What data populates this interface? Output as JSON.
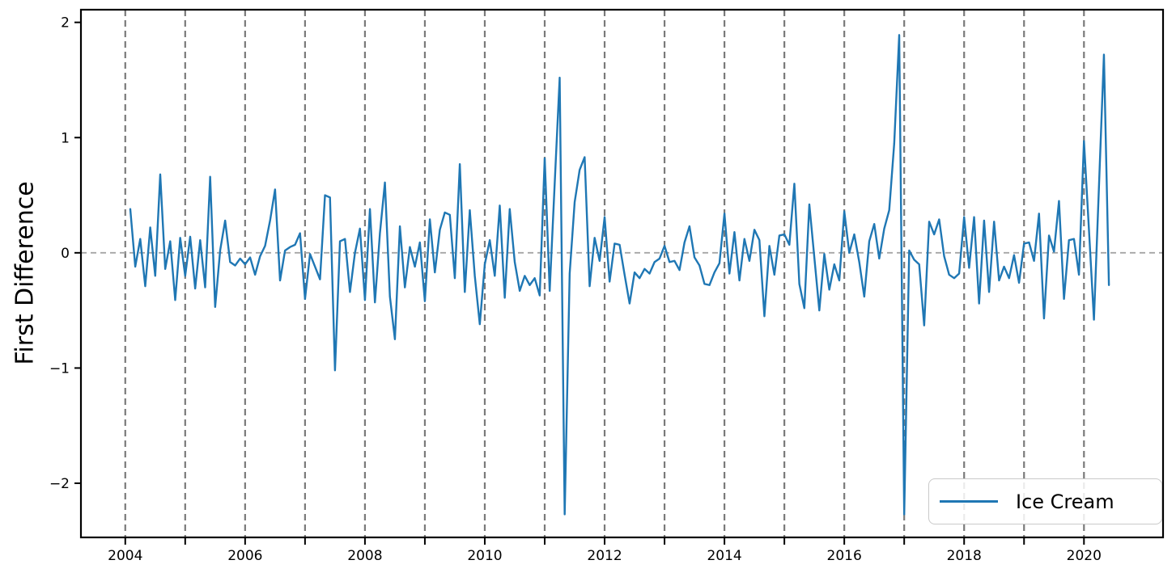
{
  "figure": {
    "ylabel": "First Difference",
    "legend": {
      "label": "Ice Cream",
      "position": "lower right"
    }
  },
  "style": {
    "line_color": "#1f77b4",
    "grid_color": "#7a7a7a",
    "zero_line_color": "#a6a6a6",
    "spine_color": "#000000",
    "background": "#ffffff"
  },
  "chart_data": {
    "type": "line",
    "title": "",
    "xlabel": "",
    "ylabel": "First Difference",
    "grid": "vertical dashed lines at every year, dashed horizontal line at 0",
    "legend_position": "lower right",
    "xlim": [
      2003.26,
      2021.32
    ],
    "ylim": [
      -2.47,
      2.11
    ],
    "y_ticks": [
      -2,
      -1,
      0,
      1,
      2
    ],
    "x_tick_years": [
      2004,
      2005,
      2006,
      2007,
      2008,
      2009,
      2010,
      2011,
      2012,
      2013,
      2014,
      2015,
      2016,
      2017,
      2018,
      2019,
      2020
    ],
    "x_tick_label_years": [
      2004,
      2006,
      2008,
      2010,
      2012,
      2014,
      2016,
      2018,
      2020
    ],
    "x_gridline_years": [
      2004,
      2005,
      2006,
      2007,
      2008,
      2009,
      2010,
      2011,
      2012,
      2013,
      2014,
      2015,
      2016,
      2017,
      2018,
      2019,
      2020
    ],
    "zero_line": true,
    "series": [
      {
        "name": "Ice Cream",
        "color": "#1f77b4",
        "frequency": "monthly",
        "start": "2004-02",
        "end": "2020-06",
        "x_start": 2004.08333,
        "x_step": 0.0833333,
        "values": [
          0.38,
          -0.12,
          0.12,
          -0.29,
          0.22,
          -0.2,
          0.68,
          -0.14,
          0.1,
          -0.41,
          0.13,
          -0.2,
          0.14,
          -0.31,
          0.11,
          -0.3,
          0.66,
          -0.47,
          0.02,
          0.28,
          -0.08,
          -0.11,
          -0.05,
          -0.1,
          -0.04,
          -0.19,
          -0.03,
          0.06,
          0.28,
          0.55,
          -0.24,
          0.02,
          0.05,
          0.07,
          0.17,
          -0.4,
          -0.01,
          -0.12,
          -0.23,
          0.5,
          0.48,
          -1.02,
          0.1,
          0.12,
          -0.34,
          0.0,
          0.21,
          -0.41,
          0.38,
          -0.43,
          0.17,
          0.61,
          -0.38,
          -0.75,
          0.23,
          -0.3,
          0.05,
          -0.12,
          0.09,
          -0.42,
          0.29,
          -0.17,
          0.2,
          0.35,
          0.33,
          -0.22,
          0.77,
          -0.34,
          0.37,
          -0.2,
          -0.62,
          -0.1,
          0.11,
          -0.2,
          0.41,
          -0.39,
          0.38,
          -0.08,
          -0.33,
          -0.2,
          -0.28,
          -0.22,
          -0.37,
          0.82,
          -0.33,
          0.6,
          1.52,
          -2.27,
          -0.18,
          0.44,
          0.72,
          0.83,
          -0.29,
          0.13,
          -0.07,
          0.31,
          -0.25,
          0.08,
          0.07,
          -0.19,
          -0.44,
          -0.17,
          -0.22,
          -0.14,
          -0.18,
          -0.08,
          -0.05,
          0.06,
          -0.08,
          -0.07,
          -0.15,
          0.09,
          0.23,
          -0.04,
          -0.11,
          -0.27,
          -0.28,
          -0.17,
          -0.09,
          0.34,
          -0.18,
          0.18,
          -0.24,
          0.12,
          -0.07,
          0.2,
          0.11,
          -0.55,
          0.06,
          -0.19,
          0.15,
          0.16,
          0.07,
          0.6,
          -0.27,
          -0.48,
          0.42,
          -0.04,
          -0.5,
          -0.01,
          -0.32,
          -0.1,
          -0.24,
          0.36,
          0.0,
          0.16,
          -0.08,
          -0.38,
          0.1,
          0.25,
          -0.05,
          0.21,
          0.37,
          0.95,
          1.89,
          -2.27,
          0.02,
          -0.06,
          -0.1,
          -0.63,
          0.27,
          0.16,
          0.29,
          -0.03,
          -0.19,
          -0.22,
          -0.18,
          0.31,
          -0.13,
          0.31,
          -0.44,
          0.28,
          -0.34,
          0.27,
          -0.24,
          -0.12,
          -0.22,
          -0.02,
          -0.26,
          0.08,
          0.09,
          -0.07,
          0.34,
          -0.57,
          0.15,
          0.01,
          0.45,
          -0.4,
          0.11,
          0.12,
          -0.19,
          0.97,
          0.2,
          -0.58,
          0.57,
          1.72,
          -0.28
        ]
      }
    ]
  }
}
